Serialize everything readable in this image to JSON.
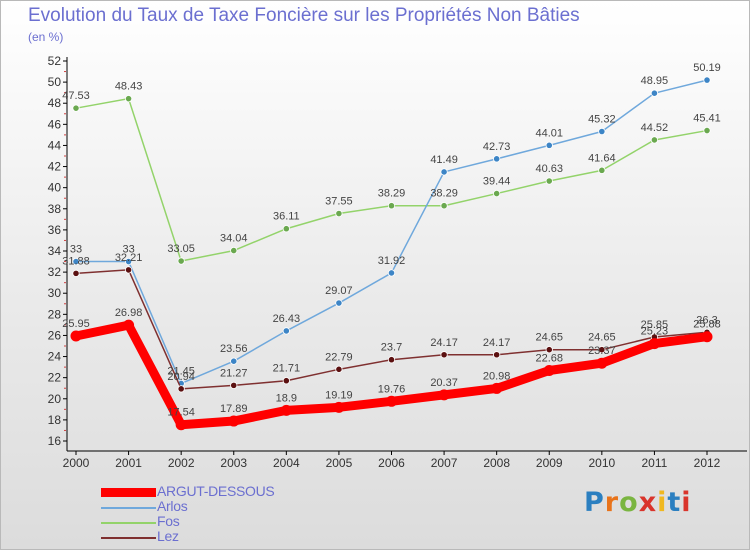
{
  "header": {
    "title": "Evolution du Taux de Taxe Foncière sur les Propriétés Non Bâties",
    "subtitle": "(en %)"
  },
  "brand": {
    "text": "Proxiti",
    "letter_colors": [
      "#2b7fc0",
      "#e8731a",
      "#7ab541",
      "#d9342b",
      "#f0b81f",
      "#2b7fc0",
      "#d9342b"
    ]
  },
  "chart_data": {
    "type": "line",
    "x": [
      "2000",
      "2001",
      "2002",
      "2003",
      "2004",
      "2005",
      "2006",
      "2007",
      "2008",
      "2009",
      "2010",
      "2011",
      "2012"
    ],
    "ylim": [
      16,
      52
    ],
    "yticks": [
      16,
      18,
      20,
      22,
      24,
      26,
      28,
      30,
      32,
      34,
      36,
      38,
      40,
      42,
      44,
      46,
      48,
      50,
      52
    ],
    "grid": false,
    "legend_position": "bottom-left",
    "series": [
      {
        "name": "ARGUT-DESSOUS",
        "color": "#ff0000",
        "marker_color": "#ff0000",
        "values": [
          25.95,
          26.98,
          17.54,
          17.89,
          18.9,
          19.19,
          19.76,
          20.37,
          20.98,
          22.68,
          23.37,
          25.23,
          25.88
        ],
        "labels": [
          "25.95",
          "26.98",
          "17.54",
          "17.89",
          "18.9",
          "19.19",
          "19.76",
          "20.37",
          "20.98",
          "22.68",
          "23.37",
          "25.23",
          "25.88"
        ]
      },
      {
        "name": "Arlos",
        "color": "#6fa8dc",
        "marker_color": "#3d85c6",
        "values": [
          33,
          33,
          21.45,
          23.56,
          26.43,
          29.07,
          31.92,
          41.49,
          42.73,
          44.01,
          45.32,
          48.95,
          50.19
        ],
        "labels": [
          "33",
          "33",
          "21.45",
          "23.56",
          "26.43",
          "29.07",
          "31.92",
          "41.49",
          "42.73",
          "44.01",
          "45.32",
          "48.95",
          "50.19"
        ]
      },
      {
        "name": "Fos",
        "color": "#93d36a",
        "marker_color": "#6aa84f",
        "values": [
          47.53,
          48.43,
          33.05,
          34.04,
          36.11,
          37.55,
          38.29,
          38.29,
          39.44,
          40.63,
          41.64,
          44.52,
          45.41
        ],
        "labels": [
          "47.53",
          "48.43",
          "33.05",
          "34.04",
          "36.11",
          "37.55",
          "38.29",
          "38.29",
          "39.44",
          "40.63",
          "41.64",
          "44.52",
          "45.41"
        ]
      },
      {
        "name": "Lez",
        "color": "#7f3030",
        "marker_color": "#5b1010",
        "values": [
          31.88,
          32.21,
          20.94,
          21.27,
          21.71,
          22.79,
          23.7,
          24.17,
          24.17,
          24.65,
          24.65,
          25.85,
          26.3
        ],
        "labels": [
          "31.88",
          "32.21",
          "20.94",
          "21.27",
          "21.71",
          "22.79",
          "23.7",
          "24.17",
          "24.17",
          "24.65",
          "24.65",
          "25.85",
          "26.3"
        ]
      }
    ]
  }
}
